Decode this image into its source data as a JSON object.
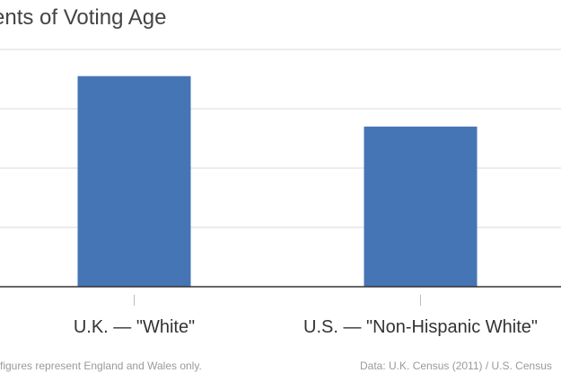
{
  "chart_data": {
    "type": "bar",
    "title": "ents of Voting Age",
    "categories": [
      "U.K. — \"White\"",
      "U.S. — \"Non-Hispanic White\""
    ],
    "values": [
      3.55,
      2.7
    ],
    "ylim": [
      0,
      4
    ],
    "grid": true,
    "bar_color": "#4575b4",
    "footnote": "figures represent England and Wales only.",
    "source": "Data: U.K. Census (2011) / U.S. Census"
  }
}
